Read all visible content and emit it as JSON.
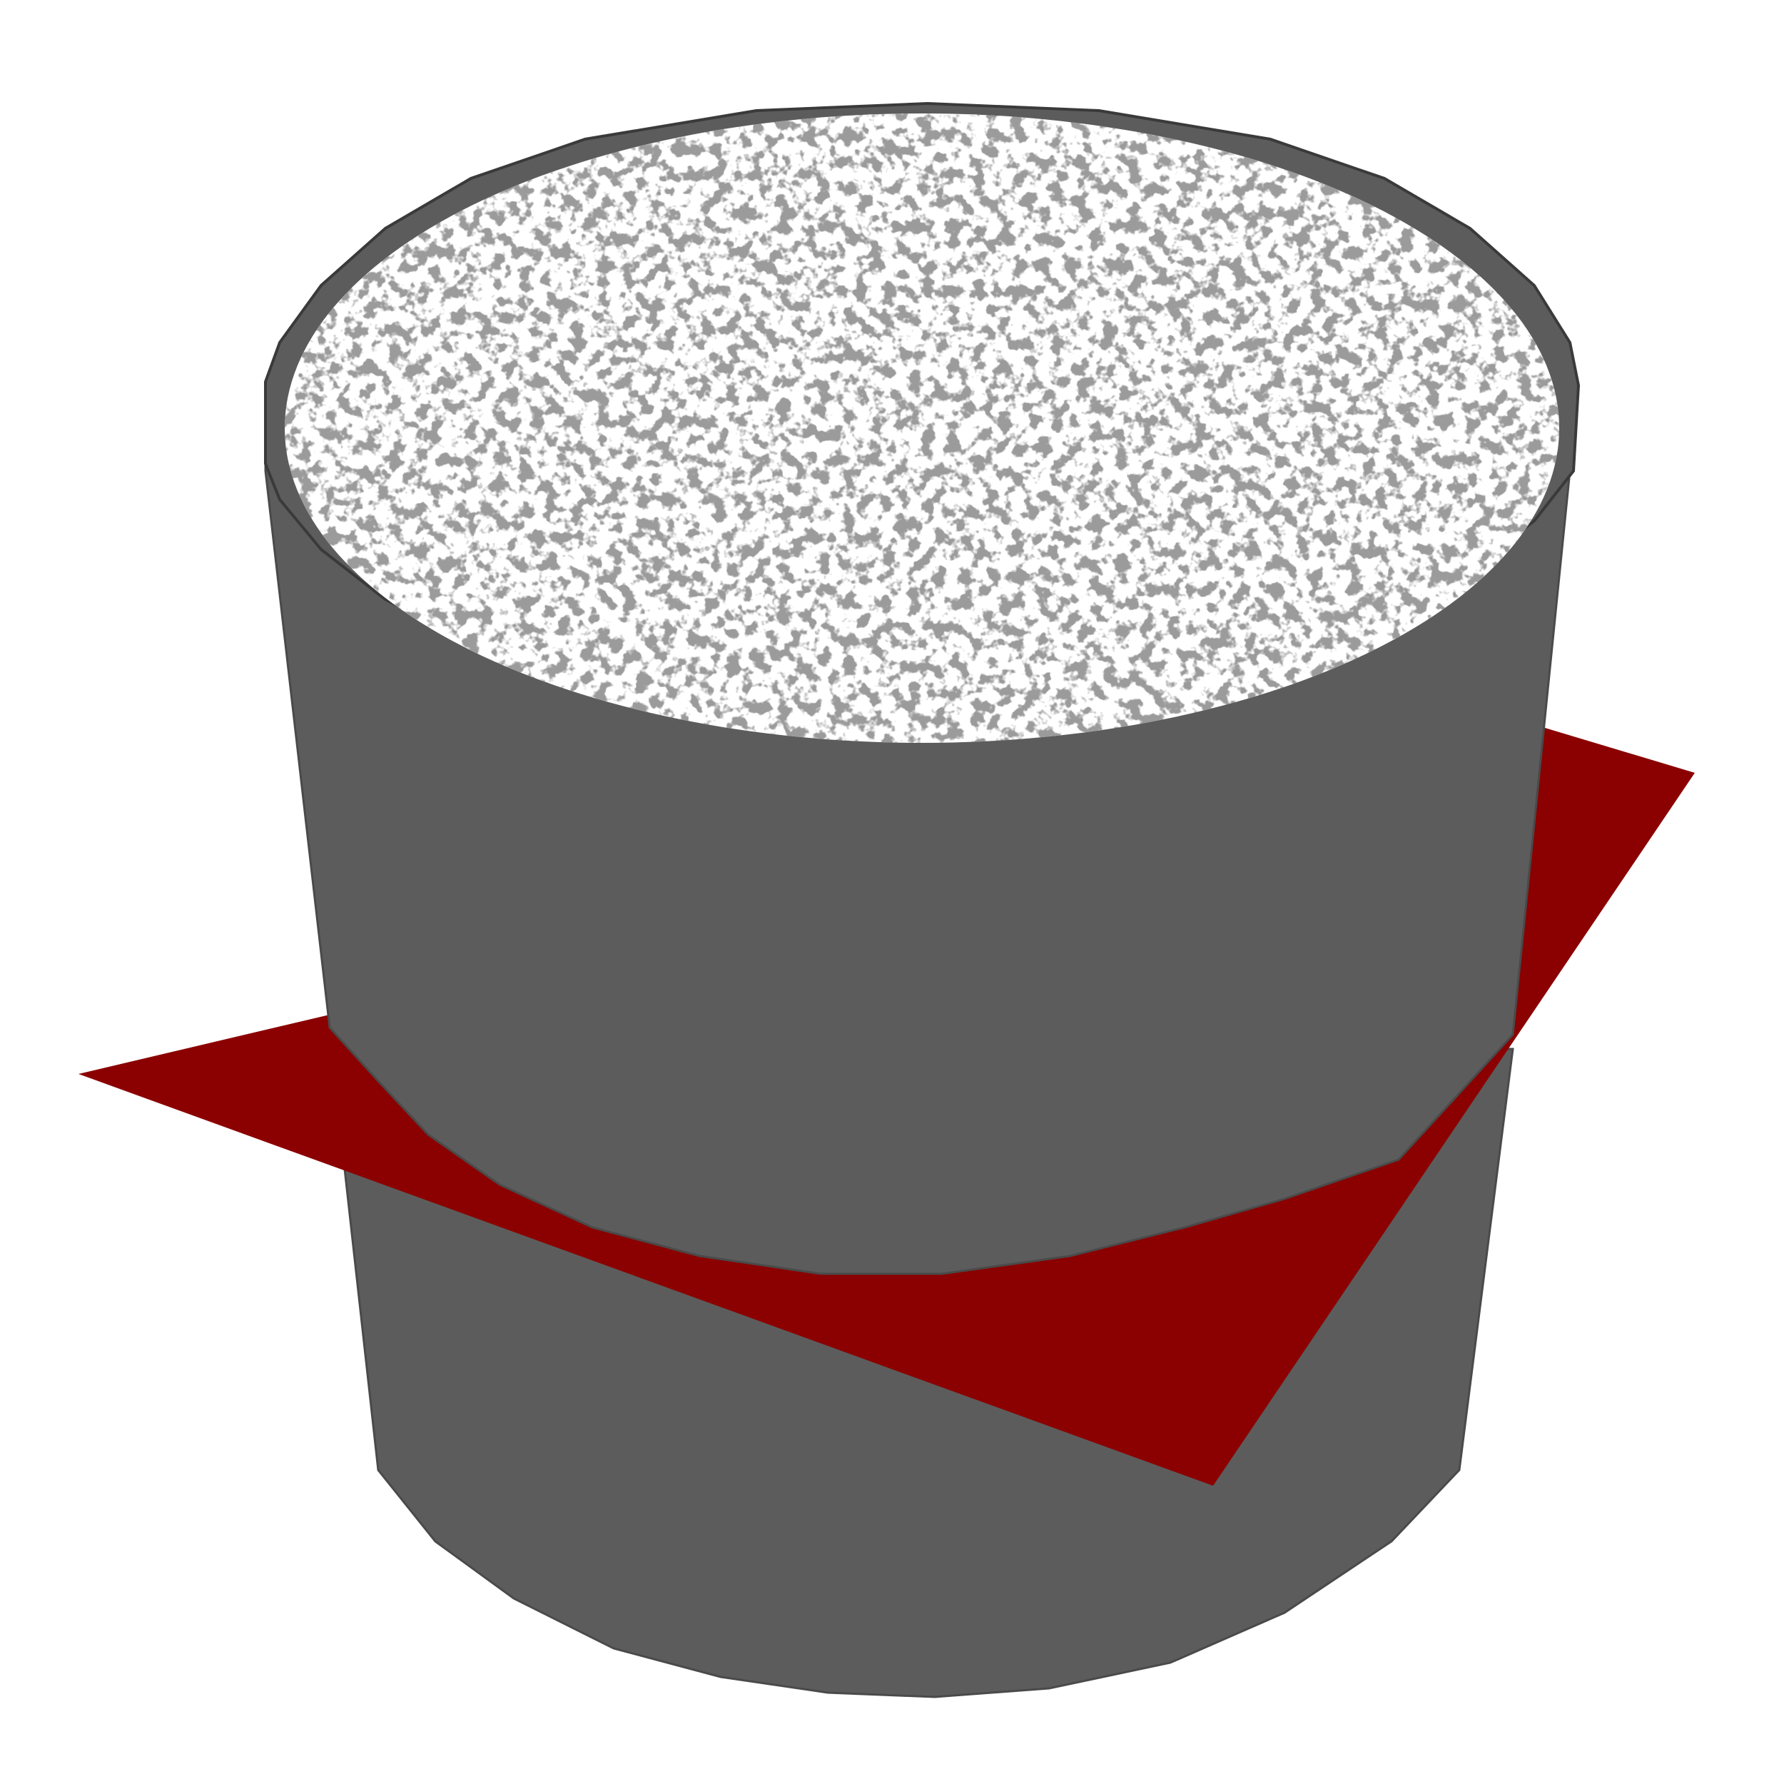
{
  "figure": {
    "description_visible_text": "",
    "colors": {
      "background": "#ffffff",
      "cylinder_body": "#5c5c5c",
      "cylinder_outline": "#4a4a4a",
      "top_surface": "#ffffff",
      "speckle": "#555555",
      "cutting_plane": "#8b0000"
    },
    "elements": {
      "cylinder": "cylinder-sample",
      "top_face": "speckled-top-surface",
      "plane": "red-cutting-plane"
    }
  }
}
